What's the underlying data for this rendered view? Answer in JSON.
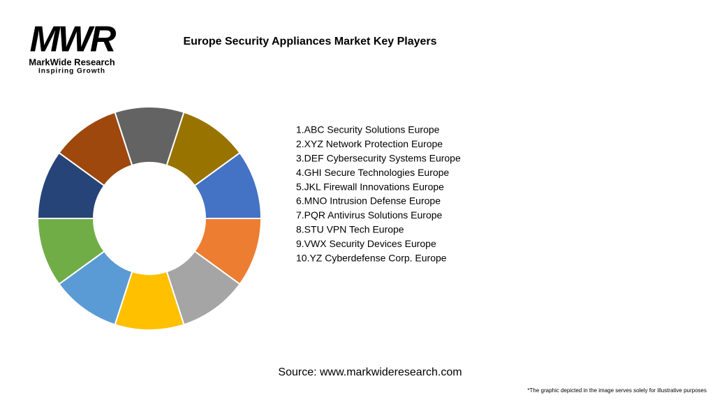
{
  "logo": {
    "mark": "MWR",
    "name": "MarkWide Research",
    "tagline": "Inspiring Growth"
  },
  "chart_data": {
    "type": "pie",
    "title": "Europe Security Appliances Market Key Players",
    "categories": [
      "1.ABC Security Solutions Europe",
      "2.XYZ Network Protection Europe",
      "3.DEF Cybersecurity Systems Europe",
      "4.GHI Secure Technologies Europe",
      "5.JKL Firewall Innovations Europe",
      "6.MNO Intrusion Defense Europe",
      "7.PQR Antivirus Solutions Europe",
      "8.STU VPN Tech Europe",
      "9.VWX Security Devices Europe",
      "10.YZ Cyberdefense Corp. Europe"
    ],
    "values": [
      10,
      10,
      10,
      10,
      10,
      10,
      10,
      10,
      10,
      10
    ],
    "colors": [
      "#4472c4",
      "#ed7d31",
      "#a5a5a5",
      "#ffc000",
      "#5b9bd5",
      "#70ad47",
      "#264478",
      "#9e480e",
      "#636363",
      "#997300"
    ],
    "donut": true
  },
  "source": "Source: www.markwideresearch.com",
  "footnote": "*The graphic depicted in the image serves solely for illustrative purposes"
}
